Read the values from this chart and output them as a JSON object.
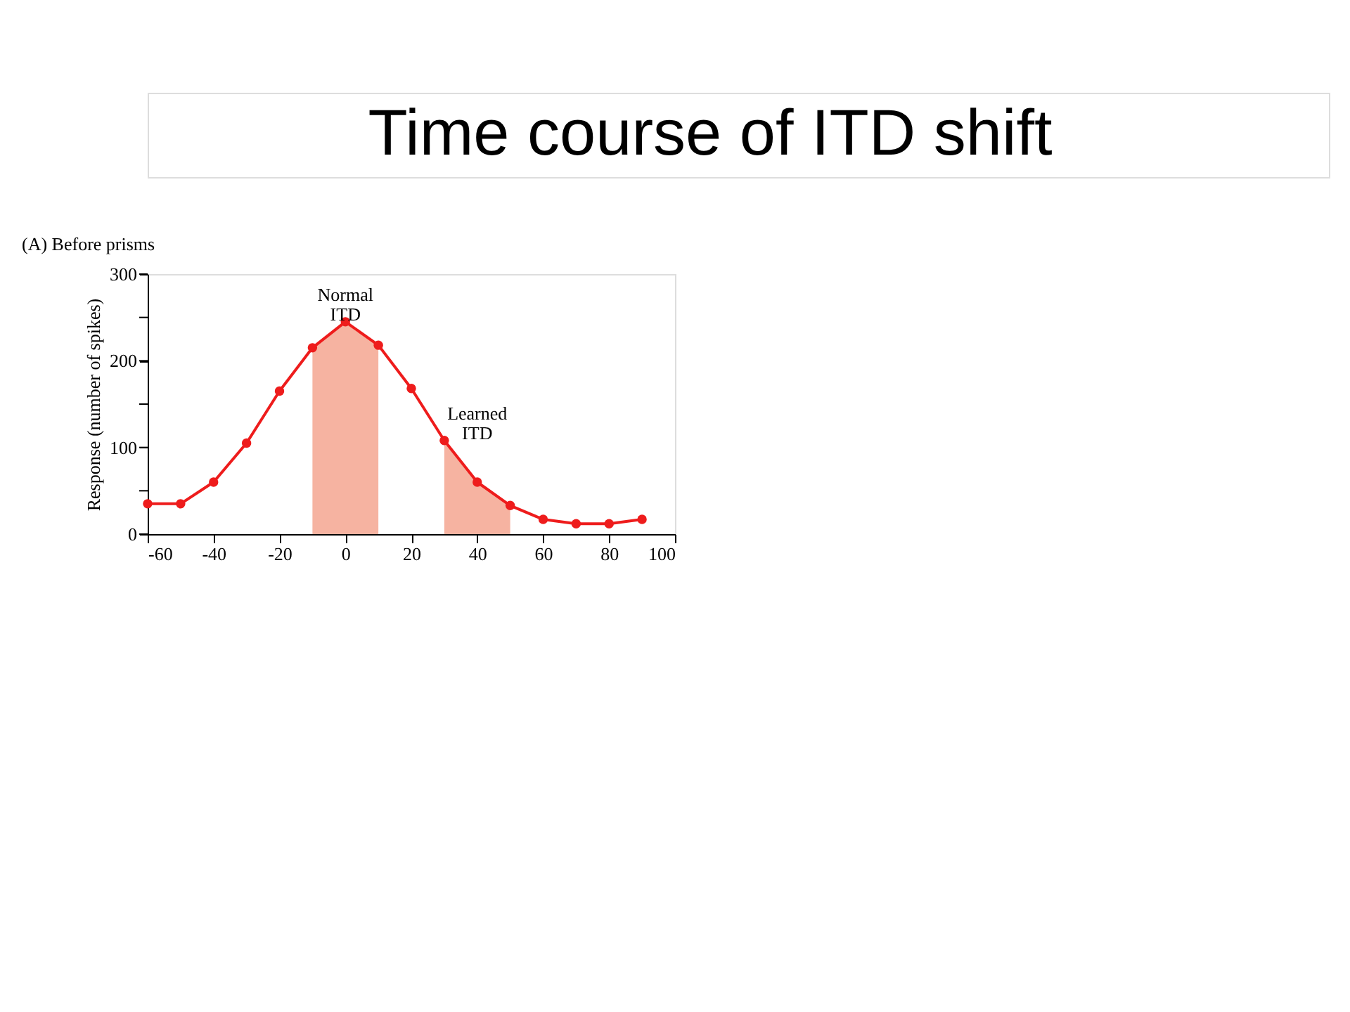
{
  "chart_data": {
    "type": "line",
    "title": "Time course of ITD shift",
    "subtitle": "(A) Before prisms",
    "ylabel": "Response (number of spikes)",
    "x": [
      -60,
      -50,
      -40,
      -30,
      -20,
      -10,
      0,
      10,
      20,
      30,
      40,
      50,
      60,
      70,
      80,
      90
    ],
    "series": [
      {
        "type": "area",
        "color": "#f4a08a",
        "x": [
          -10,
          0,
          10
        ],
        "values": [
          215,
          245,
          218
        ]
      },
      {
        "type": "area",
        "color": "#f4a08a",
        "x": [
          30,
          40,
          50
        ],
        "values": [
          108,
          60,
          33
        ]
      },
      {
        "color": "#ee1c1c",
        "marker": "circle",
        "values": [
          35,
          35,
          60,
          105,
          165,
          215,
          245,
          218,
          168,
          108,
          60,
          33,
          17,
          12,
          12,
          17
        ]
      }
    ],
    "xlim": [
      -60,
      100
    ],
    "xticks": [
      -60,
      -40,
      -20,
      0,
      20,
      40,
      60,
      80,
      100
    ],
    "ylim": [
      0,
      300
    ],
    "yticks": [
      0,
      {
        "value": 50,
        "label": null
      },
      100,
      {
        "value": 150,
        "label": null
      },
      200,
      {
        "value": 250,
        "label": null
      },
      300
    ],
    "annotations": [
      "Normal ITD",
      "Learned ITD"
    ],
    "grid": false,
    "legend": false
  }
}
